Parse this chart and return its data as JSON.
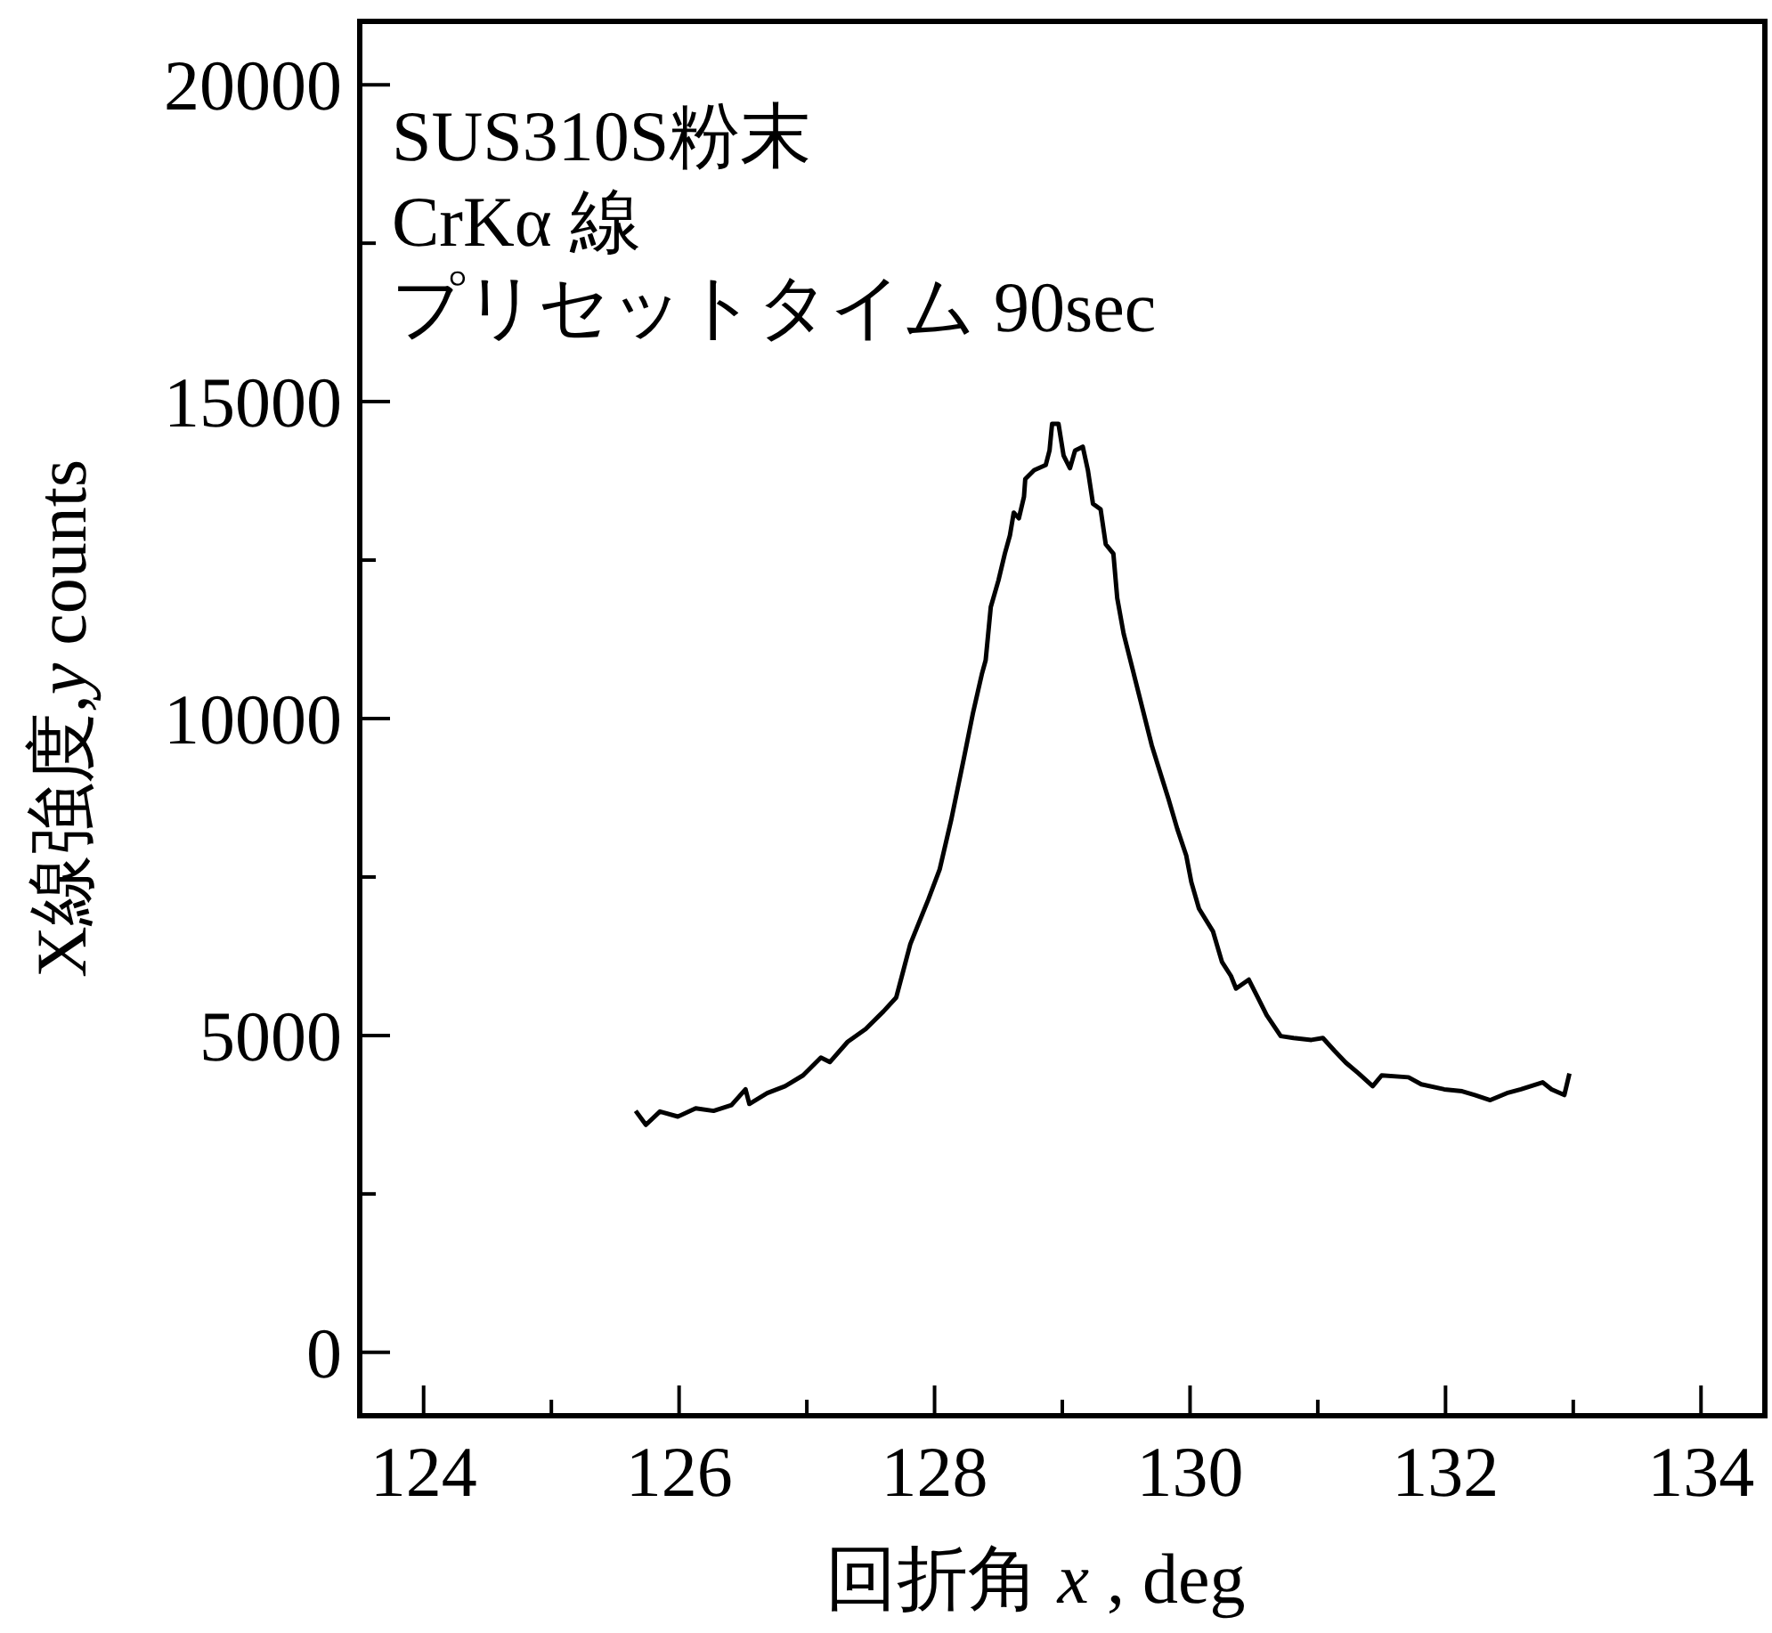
{
  "chart_data": {
    "type": "line",
    "xlabel": "回折角 *x* , deg",
    "ylabel": "X線強度,*y* counts",
    "annotations": [
      "SUS310S粉末",
      "CrKα 線",
      "プリセットタイム 90sec"
    ],
    "color": "#000000",
    "marker": "none",
    "line_style": "solid",
    "grid": false,
    "xlim": [
      123.5,
      134.5
    ],
    "ylim": [
      -1000,
      21000
    ],
    "xticks": [
      124,
      {
        "value": 125,
        "label": null
      },
      126,
      {
        "value": 127,
        "label": null
      },
      128,
      {
        "value": 129,
        "label": null
      },
      130,
      {
        "value": 131,
        "label": null
      },
      132,
      {
        "value": 133,
        "label": null
      },
      134
    ],
    "yticks": [
      0,
      {
        "value": 2500,
        "label": null
      },
      5000,
      {
        "value": 7500,
        "label": null
      },
      10000,
      {
        "value": 12500,
        "label": null
      },
      15000,
      {
        "value": 17500,
        "label": null
      },
      20000
    ],
    "x": [
      125.66,
      125.74,
      125.85,
      125.99,
      126.13,
      126.27,
      126.41,
      126.52,
      126.55,
      126.69,
      126.83,
      126.97,
      127.11,
      127.18,
      127.32,
      127.46,
      127.6,
      127.7,
      127.81,
      127.95,
      128.04,
      128.13,
      128.23,
      128.3,
      128.37,
      128.4,
      128.44,
      128.5,
      128.55,
      128.59,
      128.62,
      128.66,
      128.7,
      128.71,
      128.78,
      128.87,
      128.9,
      128.92,
      128.97,
      129.01,
      129.06,
      129.1,
      129.16,
      129.2,
      129.24,
      129.3,
      129.34,
      129.4,
      129.43,
      129.48,
      129.55,
      129.62,
      129.7,
      129.76,
      129.83,
      129.9,
      129.97,
      130.01,
      130.07,
      130.18,
      130.25,
      130.32,
      130.36,
      130.46,
      130.53,
      130.6,
      130.71,
      130.81,
      130.95,
      131.04,
      131.13,
      131.22,
      131.32,
      131.43,
      131.5,
      131.71,
      131.81,
      131.99,
      132.13,
      132.23,
      132.35,
      132.48,
      132.59,
      132.76,
      132.83,
      132.93,
      132.97
    ],
    "values": [
      3810,
      3590,
      3800,
      3720,
      3850,
      3810,
      3900,
      4150,
      3920,
      4090,
      4200,
      4370,
      4650,
      4580,
      4900,
      5100,
      5380,
      5600,
      6440,
      7140,
      7620,
      8400,
      9380,
      10080,
      10700,
      10920,
      11760,
      12180,
      12600,
      12890,
      13250,
      13160,
      13500,
      13780,
      13920,
      14000,
      14230,
      14650,
      14650,
      14150,
      13950,
      14230,
      14290,
      13920,
      13390,
      13300,
      12750,
      12600,
      11900,
      11340,
      10780,
      10220,
      9580,
      9190,
      8740,
      8260,
      7840,
      7420,
      7000,
      6640,
      6160,
      5940,
      5740,
      5880,
      5600,
      5320,
      4990,
      4960,
      4930,
      4960,
      4760,
      4570,
      4400,
      4200,
      4370,
      4340,
      4230,
      4150,
      4120,
      4060,
      3980,
      4090,
      4150,
      4260,
      4150,
      4060,
      4400
    ]
  }
}
